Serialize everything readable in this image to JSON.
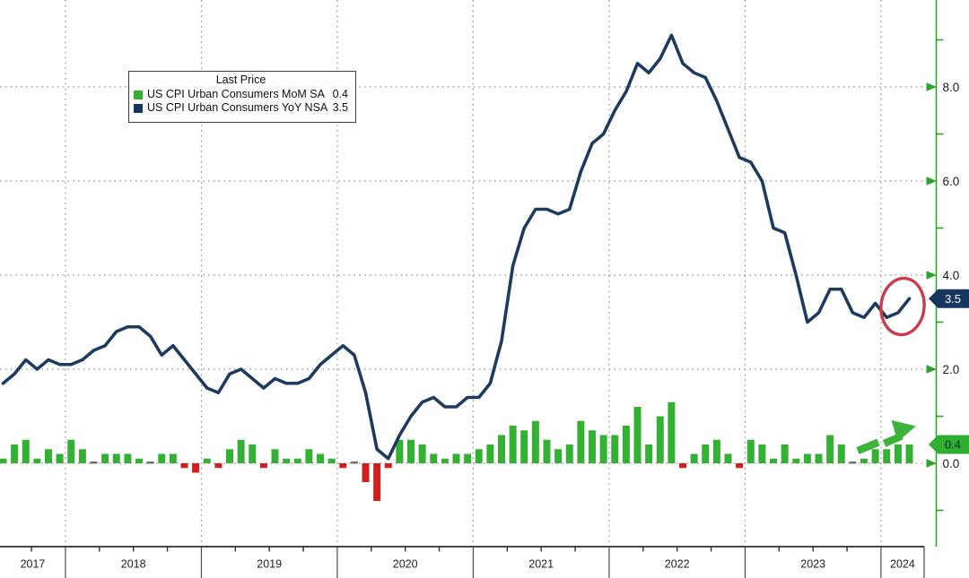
{
  "page": {
    "background": "#ffffff"
  },
  "legend": {
    "title": "Last Price",
    "items": [
      {
        "label": "US CPI Urban Consumers MoM SA",
        "value": "0.4",
        "color": "#33b133"
      },
      {
        "label": "US CPI Urban Consumers YoY NSA",
        "value": "3.5",
        "color": "#17365d"
      }
    ]
  },
  "chart_data": {
    "type": "combo (monthly bar + line time series)",
    "x_start": "2017-07",
    "x_end": "2024-03",
    "x_year_labels": [
      "2017",
      "2018",
      "2019",
      "2020",
      "2021",
      "2022",
      "2023",
      "2024"
    ],
    "y_axis": {
      "side": "right",
      "major_tick_labels": [
        "8.0",
        "6.0",
        "4.0",
        "2.0",
        "0.0"
      ],
      "major_tick_values": [
        8,
        6,
        4,
        2,
        0
      ],
      "minor_tick_values": [
        9,
        7,
        5,
        3,
        1,
        -1
      ],
      "axis_color": "#2da32d",
      "label_color": "#1a1a1a",
      "range_approx": [
        -1.8,
        9.8
      ]
    },
    "grid": {
      "style": "dotted gray",
      "h_lines_at": [
        8,
        6,
        4,
        2,
        0
      ],
      "v_lines": "at each January"
    },
    "series": [
      {
        "name": "US CPI Urban Consumers MoM SA",
        "type": "bar",
        "color": "#33b133",
        "negative_color": "#d01f1f",
        "zero_color": "#6e6e6e",
        "last_value": 0.4,
        "values": [
          0.1,
          0.4,
          0.5,
          0.1,
          0.3,
          0.2,
          0.5,
          0.3,
          0.0,
          0.2,
          0.2,
          0.2,
          0.1,
          0.0,
          0.2,
          0.2,
          -0.1,
          -0.2,
          0.1,
          -0.1,
          0.3,
          0.5,
          0.4,
          -0.1,
          0.3,
          0.1,
          0.1,
          0.3,
          0.2,
          0.1,
          -0.1,
          0.0,
          -0.4,
          -0.8,
          -0.1,
          0.5,
          0.5,
          0.4,
          0.2,
          0.1,
          0.2,
          0.2,
          0.3,
          0.4,
          0.6,
          0.8,
          0.7,
          0.9,
          0.5,
          0.3,
          0.4,
          0.9,
          0.7,
          0.6,
          0.6,
          0.8,
          1.2,
          0.4,
          1.0,
          1.3,
          -0.1,
          0.2,
          0.4,
          0.5,
          0.2,
          -0.1,
          0.5,
          0.4,
          0.1,
          0.4,
          0.1,
          0.2,
          0.2,
          0.6,
          0.4,
          0.0,
          0.1,
          0.3,
          0.3,
          0.4,
          0.4
        ]
      },
      {
        "name": "US CPI Urban Consumers YoY NSA",
        "type": "line",
        "color": "#1d3a5f",
        "last_value": 3.5,
        "values": [
          1.7,
          1.9,
          2.2,
          2.0,
          2.2,
          2.1,
          2.1,
          2.2,
          2.4,
          2.5,
          2.8,
          2.9,
          2.9,
          2.7,
          2.3,
          2.5,
          2.2,
          1.9,
          1.6,
          1.5,
          1.9,
          2.0,
          1.8,
          1.6,
          1.8,
          1.7,
          1.7,
          1.8,
          2.1,
          2.3,
          2.5,
          2.3,
          1.5,
          0.3,
          0.1,
          0.6,
          1.0,
          1.3,
          1.4,
          1.2,
          1.2,
          1.4,
          1.4,
          1.7,
          2.6,
          4.2,
          5.0,
          5.4,
          5.4,
          5.3,
          5.4,
          6.2,
          6.8,
          7.0,
          7.5,
          7.9,
          8.5,
          8.3,
          8.6,
          9.1,
          8.5,
          8.3,
          8.2,
          7.7,
          7.1,
          6.5,
          6.4,
          6.0,
          5.0,
          4.9,
          4.0,
          3.0,
          3.2,
          3.7,
          3.7,
          3.2,
          3.1,
          3.4,
          3.1,
          3.2,
          3.5
        ]
      }
    ],
    "badges": [
      {
        "label": "3.5",
        "value": 3.5,
        "bg": "#17365d",
        "fg": "#ffffff",
        "series": "yoy"
      },
      {
        "label": "0.4",
        "value": 0.4,
        "bg": "#2fae2f",
        "fg": "#14243f",
        "series": "mom"
      }
    ],
    "annotations": [
      {
        "type": "ellipse",
        "meaning": "red circle highlighting latest YoY uptick to 3.5",
        "color": "#cc3b4c"
      },
      {
        "type": "arrow",
        "meaning": "green arrow highlighting rising MoM prints",
        "color": "#3cb43c"
      }
    ]
  }
}
